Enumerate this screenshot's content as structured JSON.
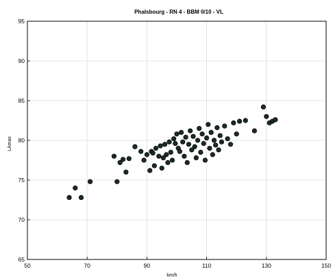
{
  "chart_data": {
    "type": "scatter",
    "title": "Phalsbourg - RN 4 - BBM 0/10 - VL",
    "xlabel": "km/h",
    "ylabel": "LAmax",
    "xlim": [
      50,
      150
    ],
    "ylim": [
      65,
      95
    ],
    "xticks": [
      "50",
      "70",
      "90",
      "110",
      "130",
      "150"
    ],
    "yticks": [
      "65",
      "70",
      "75",
      "80",
      "85",
      "90",
      "95"
    ],
    "grid": true,
    "marker_color": "#1b2f24",
    "series": [
      {
        "points": [
          [
            64.0,
            72.8
          ],
          [
            66.0,
            74.0
          ],
          [
            68.0,
            72.8
          ],
          [
            71.0,
            74.8
          ],
          [
            79.0,
            78.0
          ],
          [
            80.0,
            74.8
          ],
          [
            81.0,
            77.2
          ],
          [
            82.0,
            77.6
          ],
          [
            83.0,
            76.0
          ],
          [
            84.0,
            77.7
          ],
          [
            86.0,
            79.2
          ],
          [
            88.0,
            78.6
          ],
          [
            89.0,
            77.5
          ],
          [
            90.0,
            78.2
          ],
          [
            91.0,
            76.2
          ],
          [
            91.5,
            78.6
          ],
          [
            92.0,
            78.4
          ],
          [
            92.5,
            76.8
          ],
          [
            93.0,
            79.0
          ],
          [
            94.0,
            78.0
          ],
          [
            94.5,
            79.3
          ],
          [
            95.0,
            76.5
          ],
          [
            95.5,
            77.8
          ],
          [
            96.0,
            79.5
          ],
          [
            96.5,
            78.2
          ],
          [
            97.0,
            77.2
          ],
          [
            97.5,
            79.8
          ],
          [
            98.0,
            78.5
          ],
          [
            98.5,
            77.5
          ],
          [
            99.0,
            80.2
          ],
          [
            99.5,
            79.6
          ],
          [
            100.0,
            80.8
          ],
          [
            100.5,
            79.0
          ],
          [
            101.0,
            78.6
          ],
          [
            101.5,
            81.0
          ],
          [
            102.0,
            79.8
          ],
          [
            102.5,
            78.0
          ],
          [
            103.0,
            80.4
          ],
          [
            103.5,
            77.2
          ],
          [
            104.0,
            79.5
          ],
          [
            104.5,
            81.2
          ],
          [
            105.0,
            78.8
          ],
          [
            105.5,
            80.5
          ],
          [
            106.0,
            79.2
          ],
          [
            106.5,
            77.8
          ],
          [
            107.0,
            80.0
          ],
          [
            107.5,
            81.5
          ],
          [
            108.0,
            78.5
          ],
          [
            108.5,
            80.8
          ],
          [
            109.0,
            79.6
          ],
          [
            109.5,
            77.5
          ],
          [
            110.0,
            80.3
          ],
          [
            110.5,
            82.0
          ],
          [
            111.0,
            79.0
          ],
          [
            111.5,
            81.0
          ],
          [
            112.0,
            78.2
          ],
          [
            112.5,
            80.0
          ],
          [
            113.0,
            79.4
          ],
          [
            113.5,
            81.6
          ],
          [
            114.0,
            78.8
          ],
          [
            114.5,
            80.6
          ],
          [
            115.0,
            79.8
          ],
          [
            116.0,
            81.8
          ],
          [
            117.0,
            80.2
          ],
          [
            118.0,
            79.5
          ],
          [
            119.0,
            82.2
          ],
          [
            120.0,
            80.8
          ],
          [
            121.0,
            82.4
          ],
          [
            123.0,
            82.5
          ],
          [
            126.0,
            81.2
          ],
          [
            129.0,
            84.2
          ],
          [
            130.0,
            83.0
          ],
          [
            131.0,
            82.2
          ],
          [
            132.0,
            82.4
          ],
          [
            133.0,
            82.6
          ]
        ]
      }
    ]
  }
}
